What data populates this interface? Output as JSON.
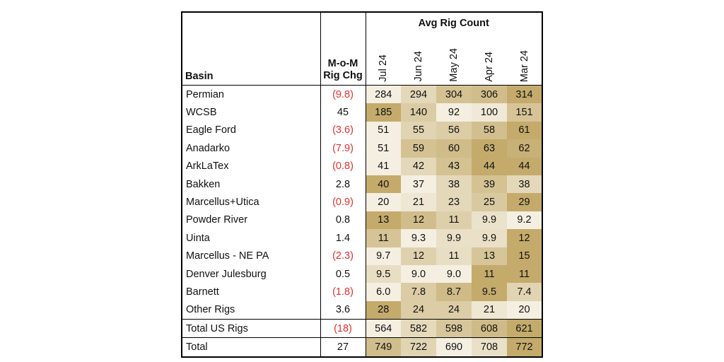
{
  "table": {
    "group_header": "Avg Rig Count",
    "basin_header": "Basin",
    "chg_header_line1": "M-o-M",
    "chg_header_line2": "Rig Chg",
    "months": [
      "Jul 24",
      "Jun 24",
      "May 24",
      "Apr 24",
      "Mar 24"
    ],
    "rows": [
      {
        "basin": "Permian",
        "chg": "(9.8)",
        "negative": true,
        "values": [
          "284",
          "294",
          "304",
          "306",
          "314"
        ]
      },
      {
        "basin": "WCSB",
        "chg": "45",
        "negative": false,
        "values": [
          "185",
          "140",
          "92",
          "100",
          "151"
        ]
      },
      {
        "basin": "Eagle Ford",
        "chg": "(3.6)",
        "negative": true,
        "values": [
          "51",
          "55",
          "56",
          "58",
          "61"
        ]
      },
      {
        "basin": "Anadarko",
        "chg": "(7.9)",
        "negative": true,
        "values": [
          "51",
          "59",
          "60",
          "63",
          "62"
        ]
      },
      {
        "basin": "ArkLaTex",
        "chg": "(0.8)",
        "negative": true,
        "values": [
          "41",
          "42",
          "43",
          "44",
          "44"
        ]
      },
      {
        "basin": "Bakken",
        "chg": "2.8",
        "negative": false,
        "values": [
          "40",
          "37",
          "38",
          "39",
          "38"
        ]
      },
      {
        "basin": "Marcellus+Utica",
        "chg": "(0.9)",
        "negative": true,
        "values": [
          "20",
          "21",
          "23",
          "25",
          "29"
        ]
      },
      {
        "basin": "Powder River",
        "chg": "0.8",
        "negative": false,
        "values": [
          "13",
          "12",
          "11",
          "9.9",
          "9.2"
        ]
      },
      {
        "basin": "Uinta",
        "chg": "1.4",
        "negative": false,
        "values": [
          "11",
          "9.3",
          "9.9",
          "9.9",
          "12"
        ]
      },
      {
        "basin": "Marcellus - NE PA",
        "chg": "(2.3)",
        "negative": true,
        "values": [
          "9.7",
          "12",
          "11",
          "13",
          "15"
        ]
      },
      {
        "basin": "Denver Julesburg",
        "chg": "0.5",
        "negative": false,
        "values": [
          "9.5",
          "9.0",
          "9.0",
          "11",
          "11"
        ]
      },
      {
        "basin": "Barnett",
        "chg": "(1.8)",
        "negative": true,
        "values": [
          "6.0",
          "7.8",
          "8.7",
          "9.5",
          "7.4"
        ]
      },
      {
        "basin": "Other Rigs",
        "chg": "3.6",
        "negative": false,
        "values": [
          "28",
          "24",
          "24",
          "21",
          "20"
        ]
      },
      {
        "basin": "Total US Rigs",
        "chg": "(18)",
        "negative": true,
        "values": [
          "564",
          "582",
          "598",
          "608",
          "621"
        ]
      },
      {
        "basin": "Total",
        "chg": "27",
        "negative": false,
        "values": [
          "749",
          "722",
          "690",
          "708",
          "772"
        ]
      }
    ],
    "colors": {
      "heat_low": "#f4efe1",
      "heat_high": "#c4ab6c",
      "negative_text": "#e03030",
      "border": "#000000"
    }
  }
}
